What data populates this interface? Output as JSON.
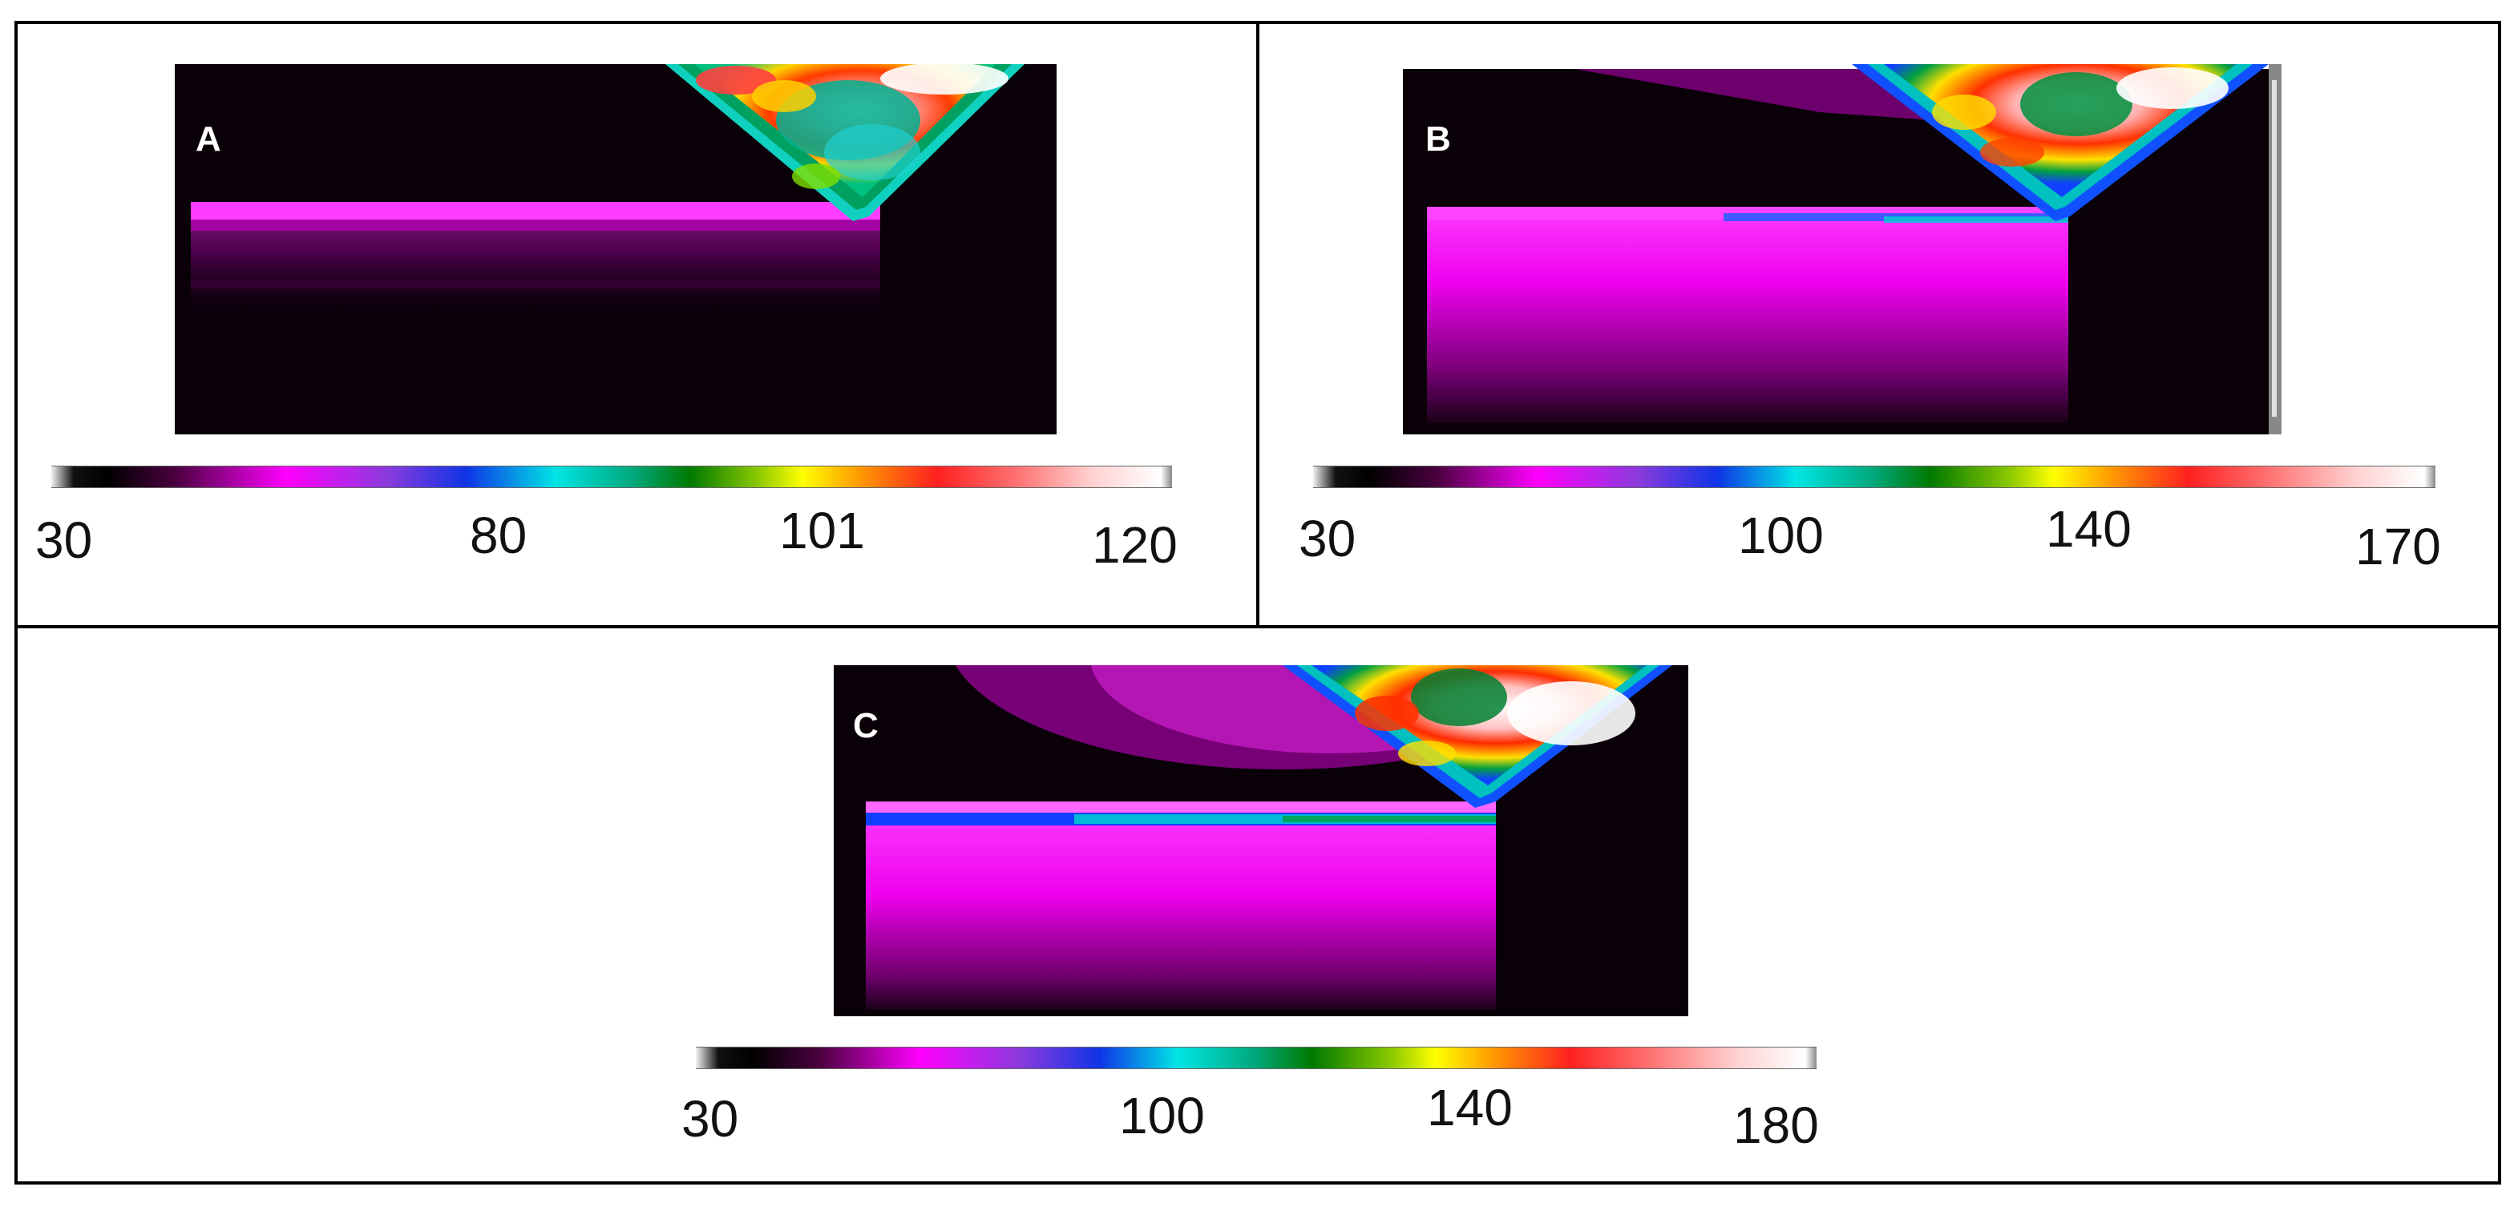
{
  "panels": [
    {
      "label": "A",
      "colorbar_ticks": [
        "30",
        "80",
        "101",
        "120"
      ]
    },
    {
      "label": "B",
      "colorbar_ticks": [
        "30",
        "100",
        "140",
        "170"
      ]
    },
    {
      "label": "C",
      "colorbar_ticks": [
        "30",
        "100",
        "140",
        "180"
      ]
    }
  ],
  "colors": {
    "background": "#ffffff",
    "frame": "#000000",
    "thermal_cold": "#0a0008",
    "thermal_warm": "#ff00ff",
    "thermal_hot": "#ffffff"
  }
}
